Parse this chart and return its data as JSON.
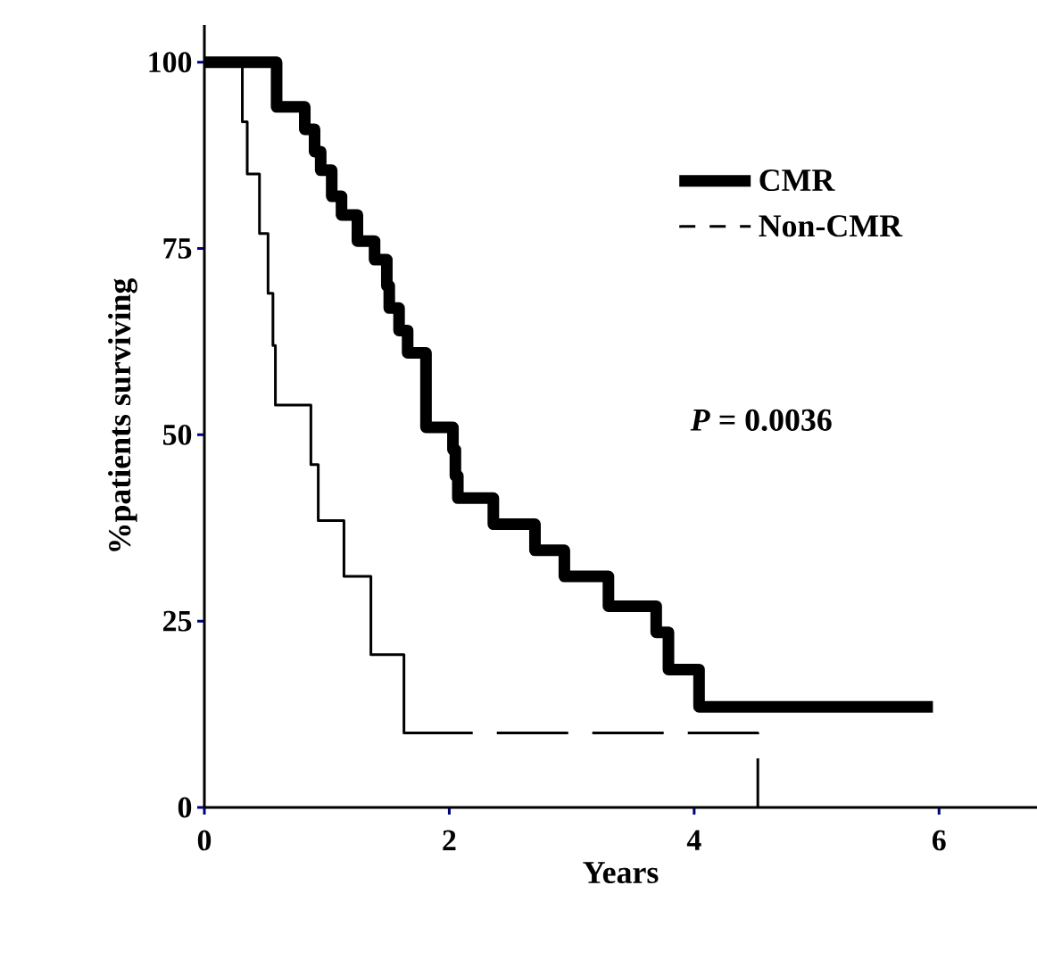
{
  "chart_data": {
    "type": "step",
    "xlabel": "Years",
    "ylabel": "%patients surviving",
    "xlim": [
      0,
      6.8
    ],
    "ylim": [
      0,
      105
    ],
    "xticks": [
      0,
      2,
      4,
      6
    ],
    "yticks": [
      0,
      25,
      50,
      75,
      100
    ],
    "grid": false,
    "legend": "top right",
    "annotations": [
      "*P* = 0.0036"
    ],
    "series": [
      {
        "name": "CMR",
        "color": "#000000",
        "line_style": "solid",
        "x": [
          0,
          0.59,
          0.82,
          0.9,
          0.95,
          1.04,
          1.12,
          1.25,
          1.39,
          1.49,
          1.51,
          1.59,
          1.66,
          1.81,
          2.03,
          2.05,
          2.07,
          2.36,
          2.7,
          2.94,
          3.3,
          3.69,
          3.79,
          4.04,
          5.95
        ],
        "values": [
          100,
          94,
          91,
          88,
          85.5,
          82,
          79.5,
          76,
          73.5,
          70,
          67,
          64,
          61,
          51,
          48,
          44.5,
          41.5,
          38,
          34.5,
          31,
          27,
          23.5,
          18.5,
          13.5,
          13.5
        ]
      },
      {
        "name": "Non-CMR",
        "color": "#000000",
        "line_style": "dashed",
        "x": [
          0,
          0.31,
          0.35,
          0.45,
          0.52,
          0.56,
          0.58,
          0.87,
          0.93,
          1.14,
          1.36,
          1.63,
          4.52
        ],
        "values": [
          100,
          92,
          85,
          77,
          69,
          62,
          54,
          46,
          38.5,
          31,
          20.5,
          10,
          0
        ]
      }
    ]
  }
}
